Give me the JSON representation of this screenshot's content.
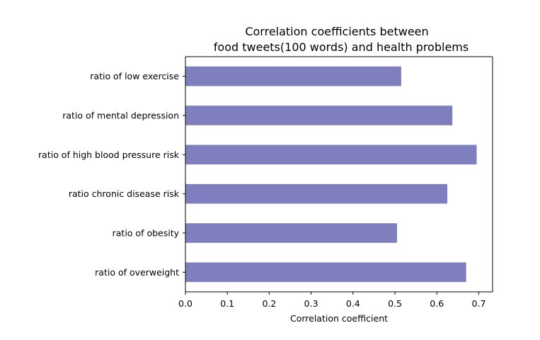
{
  "chart_data": {
    "type": "bar",
    "orientation": "horizontal",
    "title_lines": [
      "Correlation coefficients between",
      "food tweets(100 words) and health problems"
    ],
    "xlabel": "Correlation coefficient",
    "ylabel": "",
    "categories": [
      "ratio of low exercise",
      "ratio of mental depression",
      "ratio of high blood pressure risk",
      "ratio chronic disease risk",
      "ratio of obesity",
      "ratio of overweight"
    ],
    "values": [
      0.515,
      0.637,
      0.695,
      0.625,
      0.505,
      0.67
    ],
    "xlim": [
      0.0,
      0.733
    ],
    "xticks": [
      0.0,
      0.1,
      0.2,
      0.3,
      0.4,
      0.5,
      0.6,
      0.7
    ],
    "xtick_labels": [
      "0.0",
      "0.1",
      "0.2",
      "0.3",
      "0.4",
      "0.5",
      "0.6",
      "0.7"
    ],
    "bar_color": "#7f7fbf",
    "grid": false,
    "legend": "none"
  }
}
